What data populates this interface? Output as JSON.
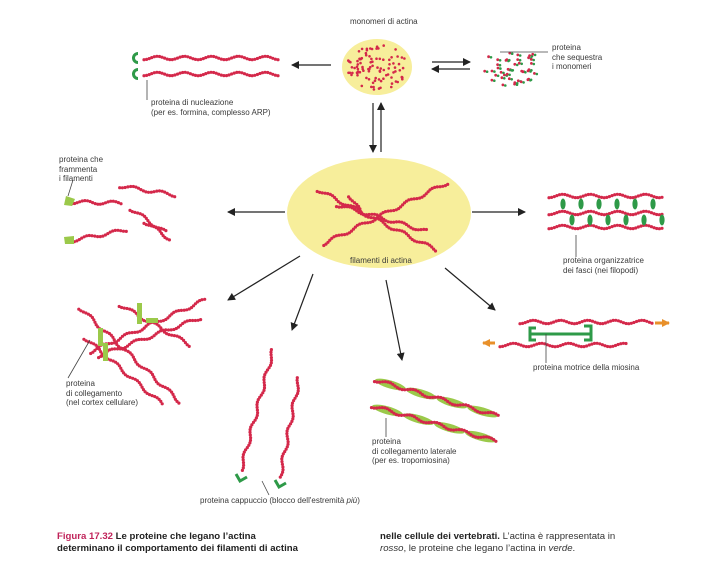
{
  "labels": {
    "monomers": "monomeri di actina",
    "sequester": [
      "proteina",
      "che sequestra",
      "i monomeri"
    ],
    "nucleation": [
      "proteina di nucleazione",
      "(per es. formina, complesso ARP)"
    ],
    "fragment": [
      "proteina che",
      "frammenta",
      "i filamenti"
    ],
    "filaments": "filamenti di actina",
    "bundling": [
      "proteina organizzatrice",
      "dei fasci (nei filopodi)"
    ],
    "crosslink": [
      "proteina",
      "di collegamento",
      "(nel cortex cellulare)"
    ],
    "motor": "proteina motrice della miosina",
    "side_binding": [
      "proteina",
      "di collegamento laterale",
      "(per es. tropomiosina)"
    ],
    "capping_prefix": "proteina cappuccio (blocco dell'estremità ",
    "capping_italic": "più",
    "capping_suffix": ")"
  },
  "caption": {
    "figure": "Figura 17.32",
    "title_line1": "Le proteine che legano l’actina",
    "title_line2": "determinano il comportamento dei filamenti di actina",
    "right_bold": "nelle cellule dei vertebrati.",
    "right_text1": " L’actina è rappresentata in",
    "right_italic1": "rosso",
    "right_text2": ", le proteine che legano l’actina in ",
    "right_italic2": "verde",
    "right_text3": "."
  },
  "colors": {
    "actin": "#d4284a",
    "binding_protein": "#2e9a48",
    "oval": "#f7ee9b",
    "motor_arrow": "#e8902a",
    "caption_title": "#c0235a"
  }
}
